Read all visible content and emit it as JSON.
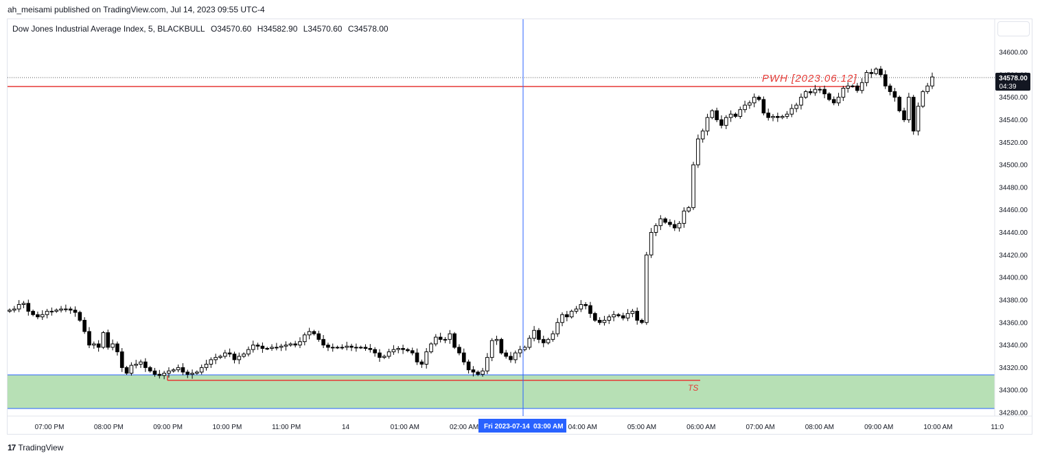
{
  "publish_line": "ah_meisami published on TradingView.com, Jul 14, 2023 09:55 UTC-4",
  "legend": {
    "symbol": "Dow Jones Industrial Average Index, 5, BLACKBULL",
    "open": "O34570.60",
    "high": "H34582.90",
    "low": "L34570.60",
    "close": "C34578.00"
  },
  "footer": {
    "logo": "17",
    "brand": "TradingView"
  },
  "price_label": {
    "price": "34578.00",
    "countdown": "04:39"
  },
  "crosshair_label": {
    "date": "Fri 2023-07-14",
    "time": "03:00 AM"
  },
  "annotations": {
    "pwh": "PWH [2023.06.12]",
    "ts": "TS"
  },
  "colors": {
    "up": "#ffffff",
    "down": "#000000",
    "wick": "#000000",
    "level_line": "#e53935",
    "zone_fill": "#b7e0b5",
    "zone_border": "#2962ff",
    "crosshair": "#2962ff"
  },
  "chart_data": {
    "type": "candlestick",
    "title": "Dow Jones Industrial Average Index, 5, BLACKBULL",
    "ylim": [
      34280,
      34600
    ],
    "y_ticks": [
      "34600.00",
      "34580.00",
      "34560.00",
      "34540.00",
      "34520.00",
      "34500.00",
      "34480.00",
      "34460.00",
      "34440.00",
      "34420.00",
      "34400.00",
      "34380.00",
      "34360.00",
      "34340.00",
      "34320.00",
      "34300.00",
      "34280.00"
    ],
    "x_ticks": [
      "07:00 PM",
      "08:00 PM",
      "09:00 PM",
      "10:00 PM",
      "11:00 PM",
      "14",
      "01:00 AM",
      "02:00 AM",
      "03:00 AM",
      "04:00 AM",
      "05:00 AM",
      "06:00 AM",
      "07:00 AM",
      "08:00 AM",
      "09:00 AM",
      "10:00 AM",
      "11:0"
    ],
    "candles_close": [
      34371,
      34372,
      34376,
      34377,
      34370,
      34367,
      34365,
      34367,
      34370,
      34370,
      34371,
      34372,
      34372,
      34371,
      34369,
      34362,
      34352,
      34340,
      34341,
      34338,
      34351,
      34338,
      34341,
      34334,
      34320,
      34315,
      34322,
      34323,
      34325,
      34320,
      34317,
      34314,
      34313,
      34315,
      34317,
      34318,
      34320,
      34316,
      34314,
      34315,
      34316,
      34320,
      34323,
      34327,
      34329,
      34330,
      34333,
      34332,
      34327,
      34330,
      34332,
      34336,
      34340,
      34339,
      34337,
      34337,
      34338,
      34338,
      34339,
      34340,
      34341,
      34340,
      34343,
      34349,
      34352,
      34350,
      34345,
      34340,
      34338,
      34338,
      34338,
      34338,
      34339,
      34338,
      34338,
      34338,
      34337,
      34336,
      34333,
      34329,
      34330,
      34334,
      34336,
      34337,
      34336,
      34335,
      34333,
      34325,
      34323,
      34334,
      34341,
      34347,
      34345,
      34345,
      34350,
      34338,
      34333,
      34325,
      34318,
      34316,
      34314,
      34317,
      34329,
      34344,
      34345,
      34333,
      34330,
      34327,
      34333,
      34336,
      34338,
      34346,
      34353,
      34345,
      34342,
      34345,
      34350,
      34360,
      34367,
      34365,
      34370,
      34372,
      34376,
      34375,
      34368,
      34362,
      34360,
      34362,
      34365,
      34367,
      34366,
      34364,
      34368,
      34370,
      34362,
      34360,
      34420,
      34440,
      34446,
      34452,
      34449,
      34447,
      34444,
      34448,
      34459,
      34462,
      34500,
      34523,
      34530,
      34542,
      34548,
      34540,
      34535,
      34542,
      34545,
      34543,
      34549,
      34553,
      34555,
      34560,
      34558,
      34546,
      34542,
      34543,
      34542,
      34543,
      34545,
      34550,
      34553,
      34560,
      34565,
      34564,
      34567,
      34567,
      34563,
      34558,
      34555,
      34560,
      34568,
      34570,
      34570,
      34566,
      34573,
      34582,
      34581,
      34585,
      34580,
      34570,
      34565,
      34560,
      34548,
      34540,
      34560,
      34530,
      34552,
      34565,
      34570,
      34578
    ]
  }
}
